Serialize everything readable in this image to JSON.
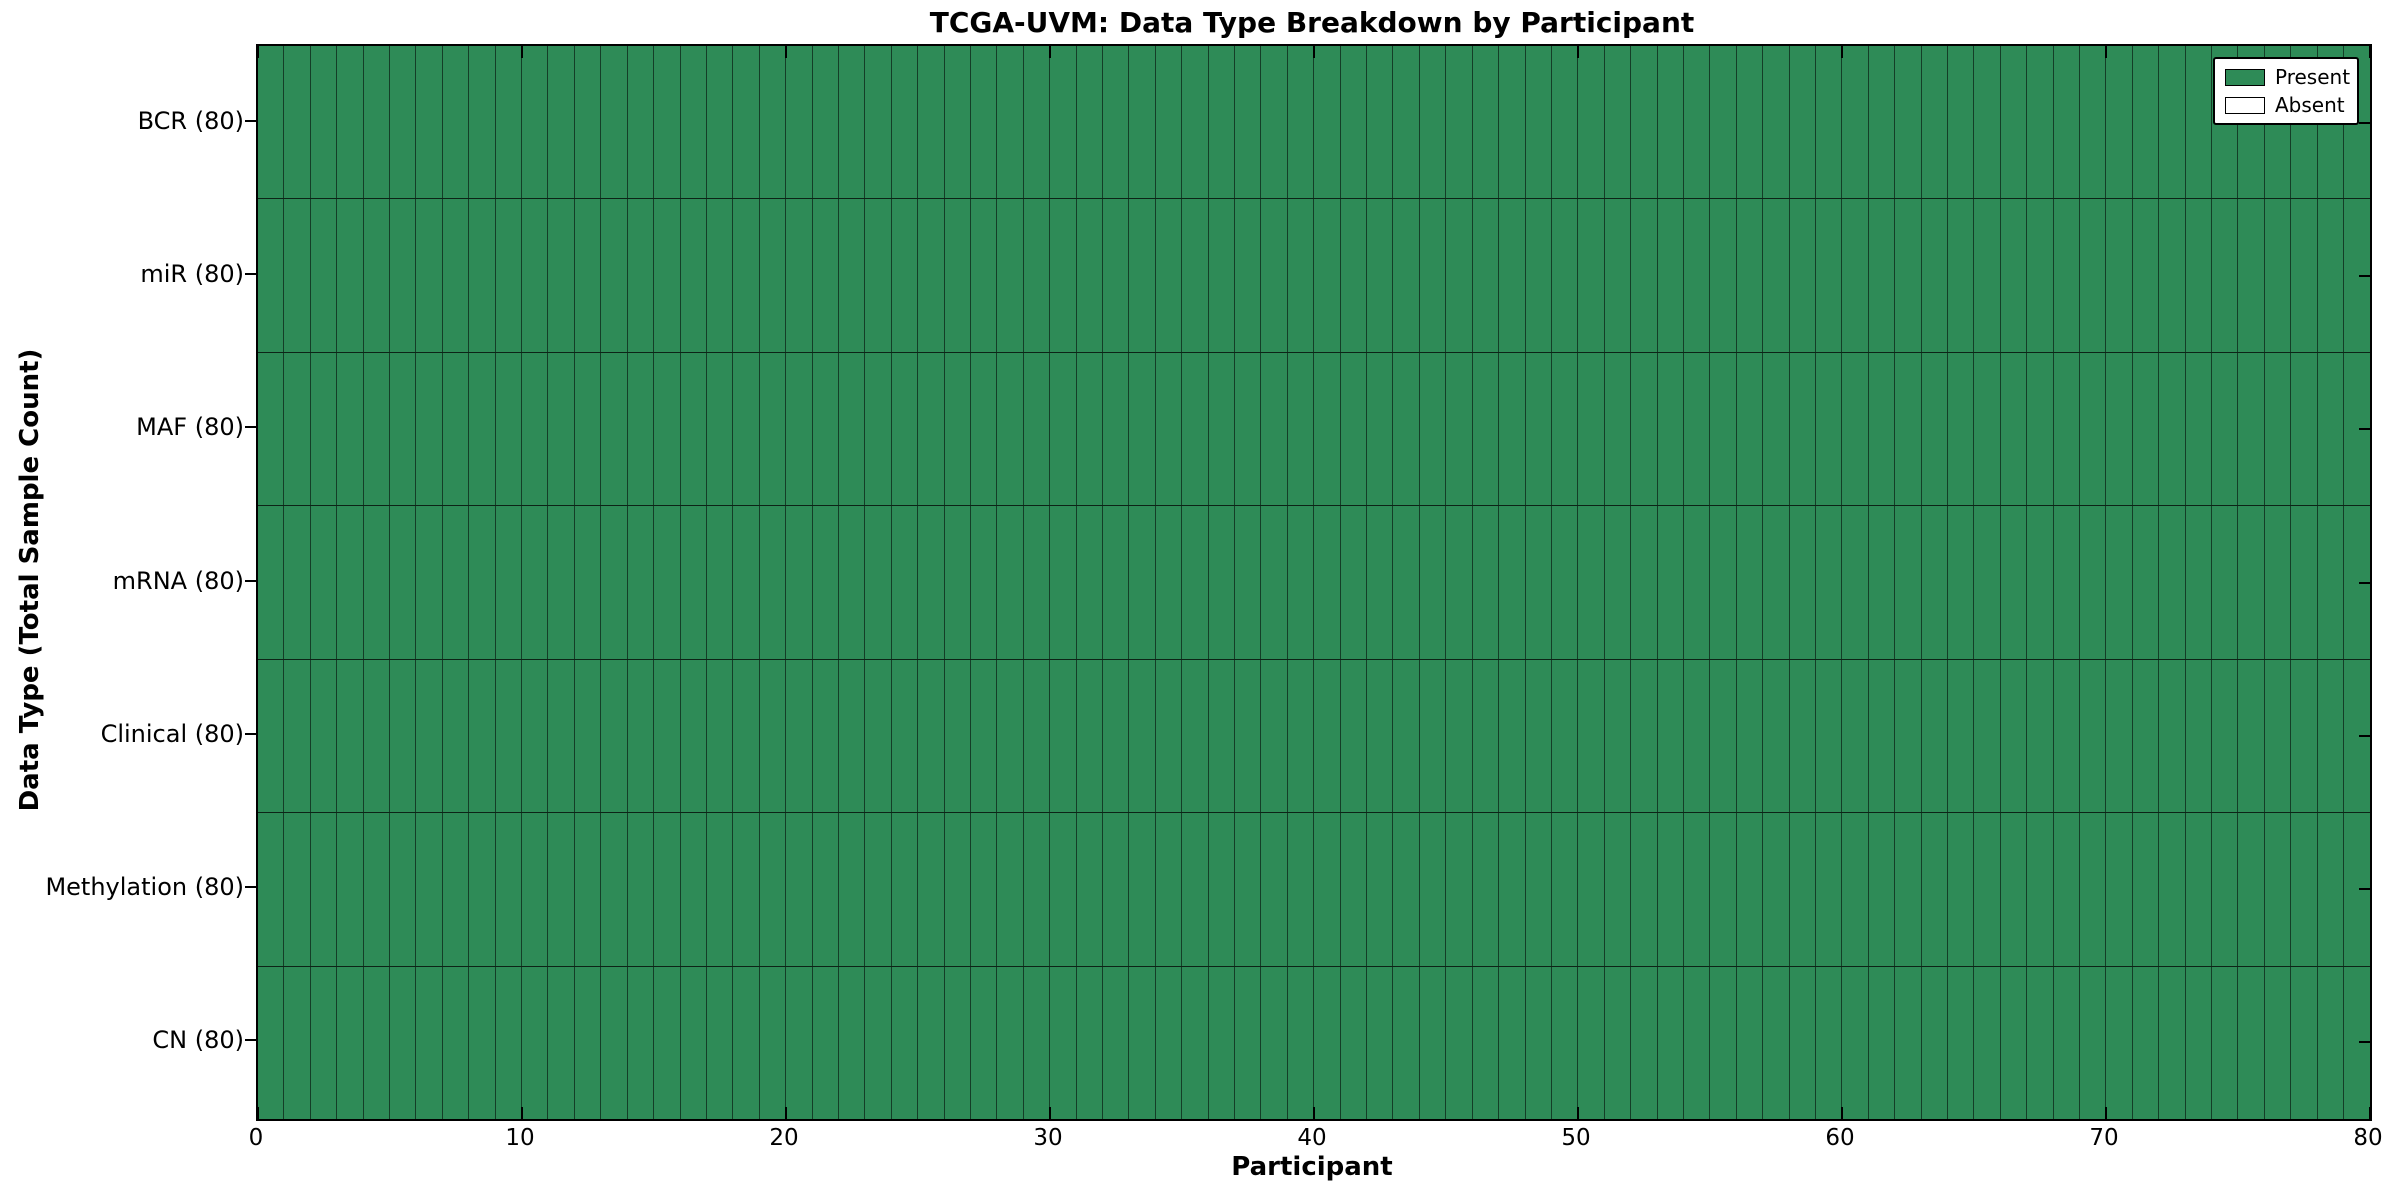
{
  "chart": {
    "title": "TCGA-UVM: Data Type Breakdown by Participant",
    "xlabel": "Participant",
    "ylabel": "Data Type (Total Sample Count)"
  },
  "legend": {
    "items": [
      {
        "label": "Present",
        "color": "#2e8b57"
      },
      {
        "label": "Absent",
        "color": "#ffffff"
      }
    ]
  },
  "chart_data": {
    "type": "heatmap",
    "title": "TCGA-UVM: Data Type Breakdown by Participant",
    "xlabel": "Participant",
    "ylabel": "Data Type (Total Sample Count)",
    "x_range": [
      0,
      80
    ],
    "x_ticks": [
      0,
      10,
      20,
      30,
      40,
      50,
      60,
      70,
      80
    ],
    "n_participants": 80,
    "rows": [
      {
        "label": "BCR (80)",
        "total": 80,
        "present_count": 80,
        "absent_count": 0
      },
      {
        "label": "miR (80)",
        "total": 80,
        "present_count": 80,
        "absent_count": 0
      },
      {
        "label": "MAF (80)",
        "total": 80,
        "present_count": 80,
        "absent_count": 0
      },
      {
        "label": "mRNA (80)",
        "total": 80,
        "present_count": 80,
        "absent_count": 0
      },
      {
        "label": "Clinical (80)",
        "total": 80,
        "present_count": 80,
        "absent_count": 0
      },
      {
        "label": "Methylation (80)",
        "total": 80,
        "present_count": 80,
        "absent_count": 0
      },
      {
        "label": "CN (80)",
        "total": 80,
        "present_count": 80,
        "absent_count": 0
      }
    ],
    "colors": {
      "present": "#2e8b57",
      "absent": "#ffffff",
      "cell_border": "rgba(0,0,0,0.55)"
    },
    "legend_entries": [
      "Present",
      "Absent"
    ],
    "legend_position": "upper right",
    "grid": "cell-borders"
  }
}
